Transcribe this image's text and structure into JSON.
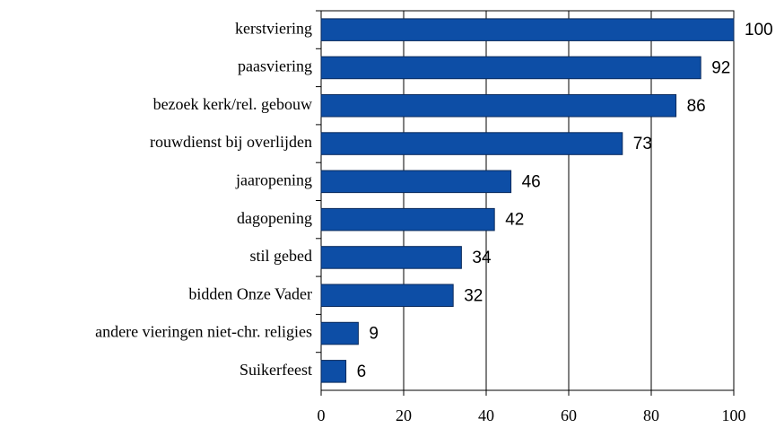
{
  "chart_data": {
    "type": "bar",
    "orientation": "horizontal",
    "categories": [
      "kerstviering",
      "paasviering",
      "bezoek kerk/rel. gebouw",
      "rouwdienst bij overlijden",
      "jaaropening",
      "dagopening",
      "stil gebed",
      "bidden Onze Vader",
      "andere vieringen niet-chr. religies",
      "Suikerfeest"
    ],
    "values": [
      100,
      92,
      86,
      73,
      46,
      42,
      34,
      32,
      9,
      6
    ],
    "color": "#0d4ea6",
    "xlim": [
      0,
      100
    ],
    "xticks": [
      0,
      20,
      40,
      60,
      80,
      100
    ],
    "grid": true
  }
}
